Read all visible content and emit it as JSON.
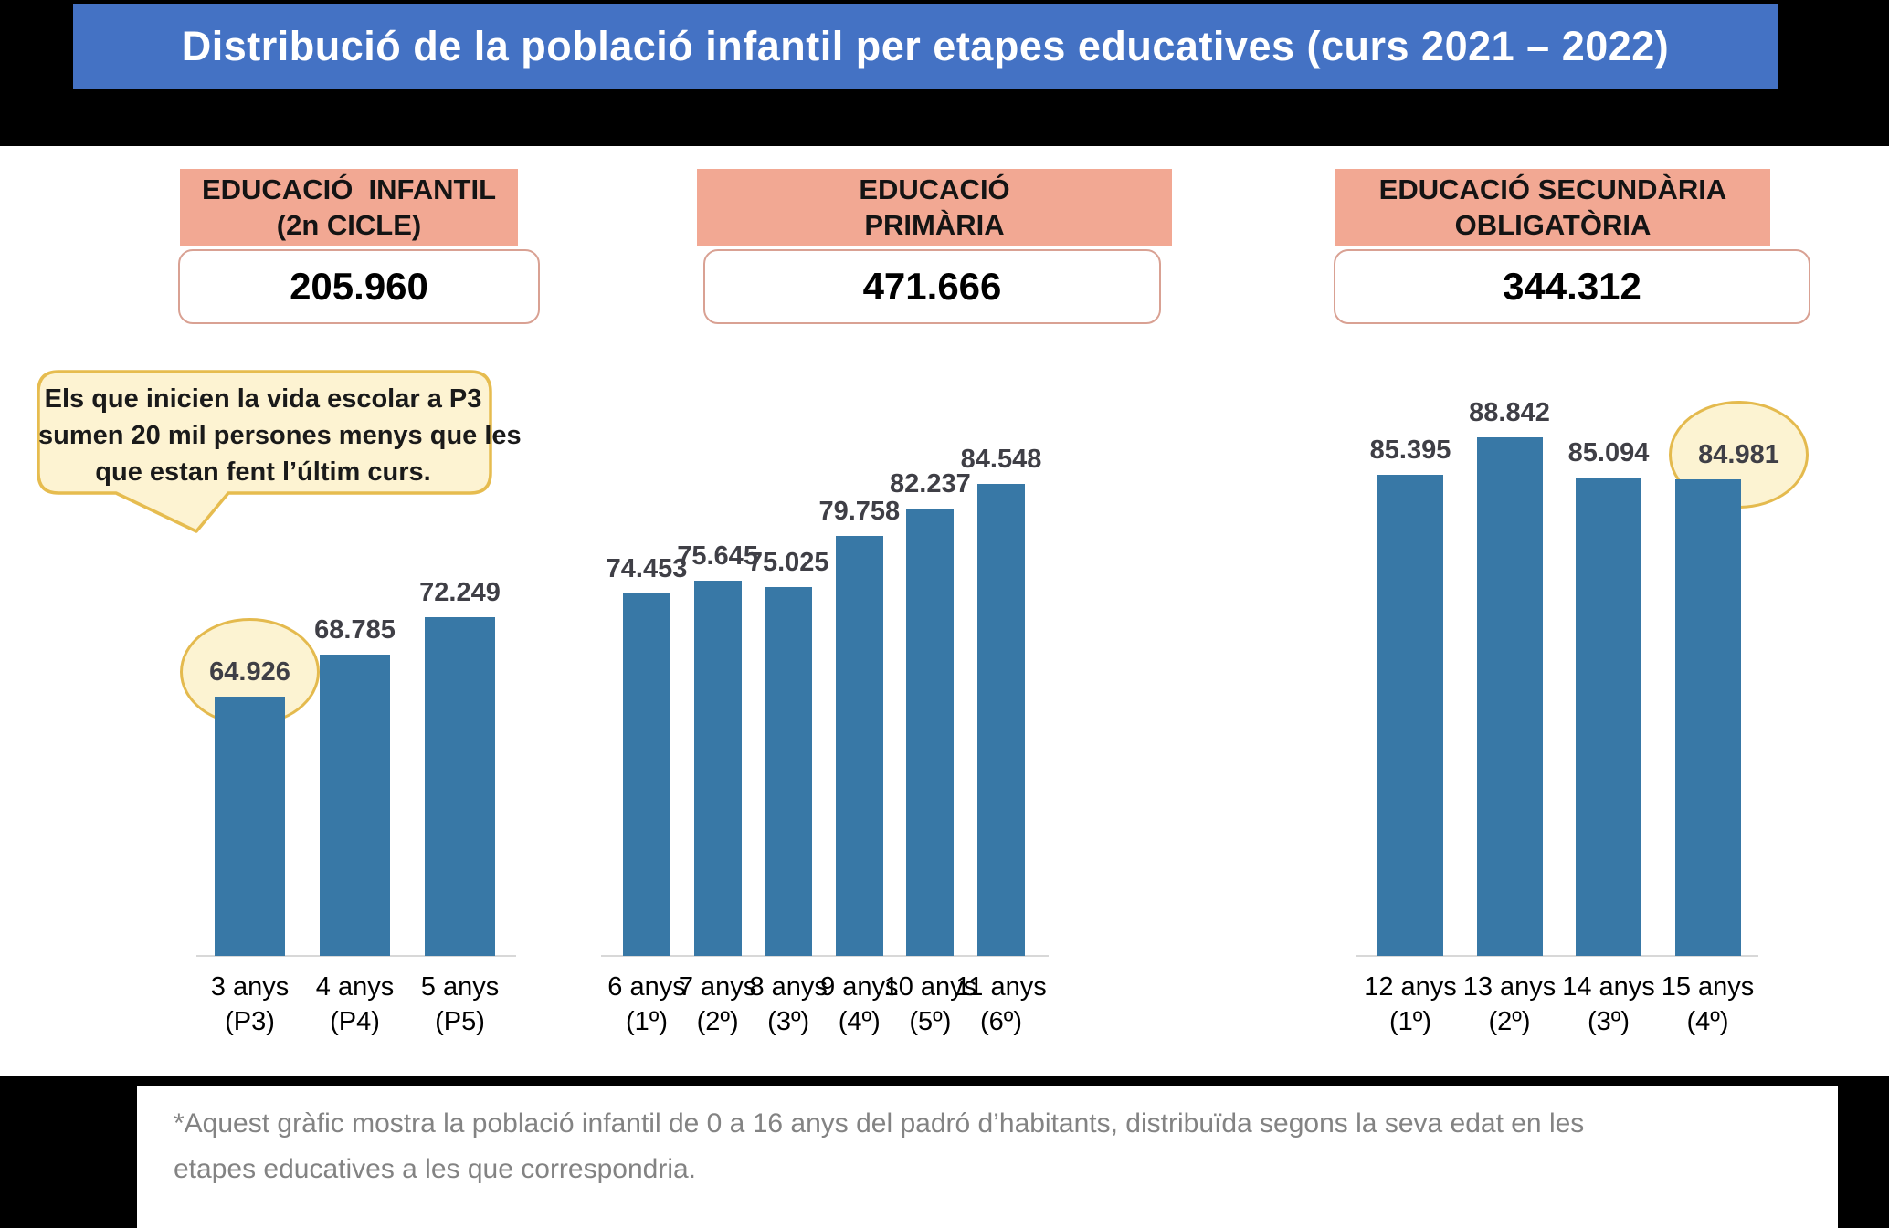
{
  "title": {
    "text": "Distribució de la població infantil per etapes educatives (curs 2021 – 2022)",
    "bar_color": "#4472C4",
    "text_color": "#FFFFFF"
  },
  "stage_summaries": [
    {
      "label_line1": "EDUCACIÓ  INFANTIL",
      "label_line2": "(2n CICLE)",
      "total": "205.960"
    },
    {
      "label_line1": "EDUCACIÓ",
      "label_line2": "PRIMÀRIA",
      "total": "471.666"
    },
    {
      "label_line1": "EDUCACIÓ SECUNDÀRIA",
      "label_line2": "OBLIGATÒRIA",
      "total": "344.312"
    }
  ],
  "callout": {
    "line1": "Els que inicien la vida escolar a P3",
    "line2": "sumen 20 mil persones menys que les",
    "line3": "que estan fent l’últim curs."
  },
  "footnote": {
    "line1": "*Aquest gràfic mostra la població infantil de 0 a 16 anys del padró d’habitants, distribuïda segons la seva edat en les",
    "line2": "etapes educatives a les que correspondria."
  },
  "colors": {
    "bar": "#3878A6",
    "stage_header_fill": "#F2A893",
    "total_box_border": "#D9A193",
    "highlight_fill": "#FCF3D2",
    "highlight_border": "#E4BA4E",
    "title_bar": "#4472C4",
    "footnote_text": "#838383"
  },
  "chart_data": {
    "type": "bar",
    "title": "Distribució de la població infantil per etapes educatives (curs 2021 – 2022)",
    "ylim": [
      41000,
      90000
    ],
    "grid": false,
    "legend": "none",
    "value_labels_shown": true,
    "bar_color": "#3878A6",
    "groups": [
      {
        "stage": "EDUCACIÓ INFANTIL (2n CICLE)",
        "total": 205960,
        "bars": [
          {
            "category_line1": "3 anys",
            "category_line2": "(P3)",
            "value": 64926,
            "value_label": "64.926",
            "highlighted": true
          },
          {
            "category_line1": "4 anys",
            "category_line2": "(P4)",
            "value": 68785,
            "value_label": "68.785",
            "highlighted": false
          },
          {
            "category_line1": "5 anys",
            "category_line2": "(P5)",
            "value": 72249,
            "value_label": "72.249",
            "highlighted": false
          }
        ]
      },
      {
        "stage": "EDUCACIÓ PRIMÀRIA",
        "total": 471666,
        "bars": [
          {
            "category_line1": "6 anys",
            "category_line2": "(1º)",
            "value": 74453,
            "value_label": "74.453",
            "highlighted": false
          },
          {
            "category_line1": "7 anys",
            "category_line2": "(2º)",
            "value": 75645,
            "value_label": "75.645",
            "highlighted": false
          },
          {
            "category_line1": "8 anys",
            "category_line2": "(3º)",
            "value": 75025,
            "value_label": "75.025",
            "highlighted": false
          },
          {
            "category_line1": "9 anys",
            "category_line2": "(4º)",
            "value": 79758,
            "value_label": "79.758",
            "highlighted": false
          },
          {
            "category_line1": "10 anys",
            "category_line2": "(5º)",
            "value": 82237,
            "value_label": "82.237",
            "highlighted": false
          },
          {
            "category_line1": "11 anys",
            "category_line2": "(6º)",
            "value": 84548,
            "value_label": "84.548",
            "highlighted": false
          }
        ]
      },
      {
        "stage": "EDUCACIÓ SECUNDÀRIA OBLIGATÒRIA",
        "total": 344312,
        "bars": [
          {
            "category_line1": "12 anys",
            "category_line2": "(1º)",
            "value": 85395,
            "value_label": "85.395",
            "highlighted": false
          },
          {
            "category_line1": "13 anys",
            "category_line2": "(2º)",
            "value": 88842,
            "value_label": "88.842",
            "highlighted": false
          },
          {
            "category_line1": "14 anys",
            "category_line2": "(3º)",
            "value": 85094,
            "value_label": "85.094",
            "highlighted": false
          },
          {
            "category_line1": "15 anys",
            "category_line2": "(4º)",
            "value": 84981,
            "value_label": "84.981",
            "highlighted": true
          }
        ]
      }
    ]
  }
}
